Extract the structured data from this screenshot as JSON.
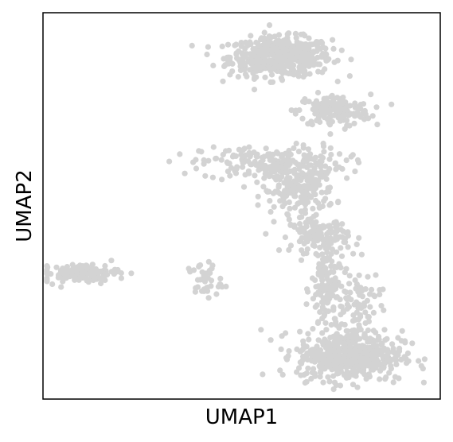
{
  "chart_data": {
    "type": "scatter",
    "title": "",
    "xlabel": "UMAP1",
    "ylabel": "UMAP2",
    "xticks": [],
    "yticks": [],
    "grid": false,
    "legend": "none",
    "xlim": [
      0,
      100
    ],
    "ylim": [
      0,
      100
    ],
    "point_color": "#d3d3d3",
    "clusters": [
      {
        "name": "",
        "center": [
          59.8,
          88.6
        ],
        "spread": [
          6.4,
          2.5
        ],
        "count": 520
      },
      {
        "name": "",
        "center": [
          73.2,
          74.6
        ],
        "spread": [
          4.6,
          2.1
        ],
        "count": 160
      },
      {
        "name": "",
        "center": [
          58.0,
          61.0
        ],
        "spread": [
          9.0,
          2.2
        ],
        "count": 220
      },
      {
        "name": "",
        "center": [
          64.4,
          53.8
        ],
        "spread": [
          4.6,
          2.8
        ],
        "count": 160
      },
      {
        "name": "",
        "center": [
          69.6,
          42.4
        ],
        "spread": [
          3.6,
          2.2
        ],
        "count": 130
      },
      {
        "name": "",
        "center": [
          71.6,
          28.2
        ],
        "spread": [
          2.0,
          6.0
        ],
        "count": 140
      },
      {
        "name": "",
        "center": [
          79.4,
          24.0
        ],
        "spread": [
          2.8,
          5.2
        ],
        "count": 80
      },
      {
        "name": "",
        "center": [
          77.2,
          11.2
        ],
        "spread": [
          6.6,
          3.2
        ],
        "count": 520
      },
      {
        "name": "",
        "center": [
          9.6,
          32.6
        ],
        "spread": [
          4.8,
          1.2
        ],
        "count": 120
      },
      {
        "name": "",
        "center": [
          40.6,
          30.6
        ],
        "spread": [
          2.2,
          2.4
        ],
        "count": 40
      }
    ]
  }
}
